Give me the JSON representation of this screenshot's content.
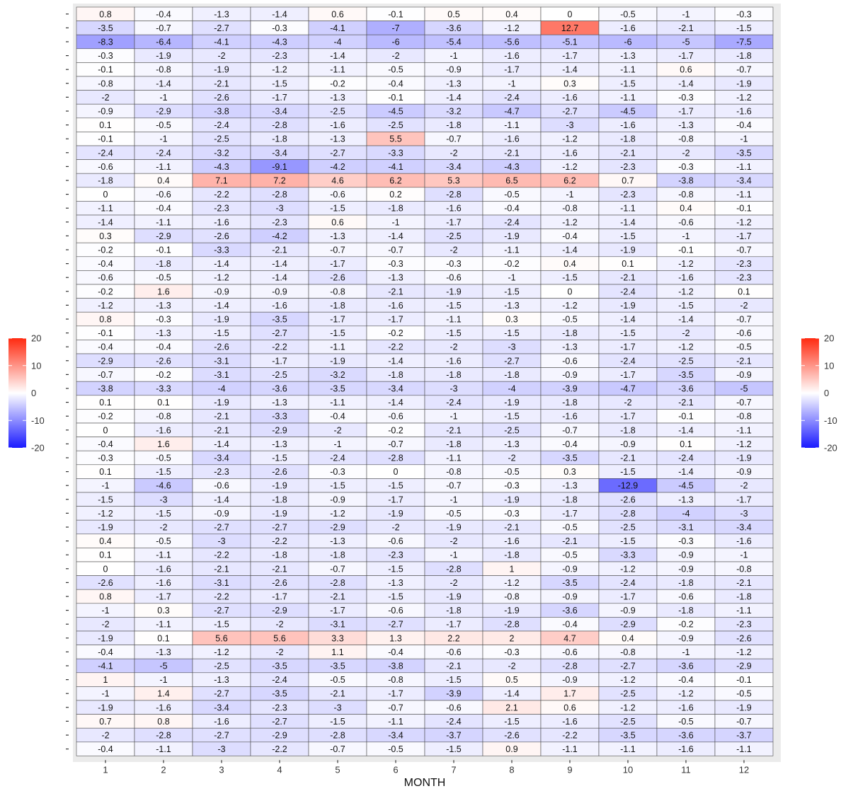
{
  "chart_data": {
    "type": "heatmap",
    "xlabel": "MONTH",
    "x": [
      1,
      2,
      3,
      4,
      5,
      6,
      7,
      8,
      9,
      10,
      11,
      12
    ],
    "color_scale": {
      "low": "#1a1aff",
      "mid": "#ffffff",
      "high": "#ff2a10",
      "limits": [
        -20,
        20
      ]
    },
    "legend": {
      "ticks": [
        20,
        10,
        0,
        -10,
        -20
      ],
      "placement": "left and right"
    },
    "grid": true,
    "values": [
      [
        0.8,
        -0.4,
        -1.3,
        -1.4,
        0.6,
        -0.1,
        0.5,
        0.4,
        0,
        -0.5,
        -1,
        -0.3
      ],
      [
        -3.5,
        -0.7,
        -2.7,
        -0.3,
        -4.1,
        -7,
        -3.6,
        -1.2,
        12.7,
        -1.6,
        -2.1,
        -1.5
      ],
      [
        -8.3,
        -6.4,
        -4.1,
        -4.3,
        -4,
        -6,
        -5.4,
        -5.6,
        -5.1,
        -6,
        -5,
        -7.5
      ],
      [
        -0.3,
        -1.9,
        -2,
        -2.3,
        -1.4,
        -2,
        -1,
        -1.6,
        -1.7,
        -1.3,
        -1.7,
        -1.8
      ],
      [
        -0.1,
        -0.8,
        -1.9,
        -1.2,
        -1.1,
        -0.5,
        -0.9,
        -1.7,
        -1.4,
        -1.1,
        0.6,
        -0.7
      ],
      [
        -0.8,
        -1.4,
        -2.1,
        -1.5,
        -0.2,
        -0.4,
        -1.3,
        -1,
        0.3,
        -1.5,
        -1.4,
        -1.9
      ],
      [
        -2,
        -1,
        -2.6,
        -1.7,
        -1.3,
        -0.1,
        -1.4,
        -2.4,
        -1.6,
        -1.1,
        -0.3,
        -1.2
      ],
      [
        -0.9,
        -2.9,
        -3.8,
        -3.4,
        -2.5,
        -4.5,
        -3.2,
        -4.7,
        -2.7,
        -4.5,
        -1.7,
        -1.6
      ],
      [
        0.1,
        -0.5,
        -2.4,
        -2.8,
        -1.6,
        -2.5,
        -1.8,
        -1.1,
        -3,
        -1.6,
        -1.3,
        -0.4
      ],
      [
        -0.1,
        -1,
        -2.5,
        -1.8,
        -1.3,
        5.5,
        -0.7,
        -1.6,
        -1.2,
        -1.8,
        -0.8,
        -1
      ],
      [
        -2.4,
        -2.4,
        -3.2,
        -3.4,
        -2.7,
        -3.3,
        -2,
        -2.1,
        -1.6,
        -2.1,
        -2,
        -3.5
      ],
      [
        -0.6,
        -1.1,
        -4.3,
        -9.1,
        -4.2,
        -4.1,
        -3.4,
        -4.3,
        -1.2,
        -2.3,
        -0.3,
        -1.1
      ],
      [
        -1.8,
        0.4,
        7.1,
        7.2,
        4.6,
        6.2,
        5.3,
        6.5,
        6.2,
        0.7,
        -3.8,
        -3.4
      ],
      [
        0,
        -0.6,
        -2.2,
        -2.8,
        -0.6,
        0.2,
        -2.8,
        -0.5,
        -1,
        -2.3,
        -0.8,
        -1.1
      ],
      [
        -1.1,
        -0.4,
        -2.3,
        -3,
        -1.5,
        -1.8,
        -1.6,
        -0.4,
        -0.8,
        -1.1,
        0.4,
        -0.1
      ],
      [
        -1.4,
        -1.1,
        -1.6,
        -2.3,
        0.6,
        -1,
        -1.7,
        -2.4,
        -1.2,
        -1.4,
        -0.6,
        -1.2
      ],
      [
        0.3,
        -2.9,
        -2.6,
        -4.2,
        -1.3,
        -1.4,
        -2.5,
        -1.9,
        -0.4,
        -1.5,
        -1,
        -1.7
      ],
      [
        -0.2,
        -0.1,
        -3.3,
        -2.1,
        -0.7,
        -0.7,
        -2,
        -1.1,
        -1.4,
        -1.9,
        -0.1,
        -0.7
      ],
      [
        -0.4,
        -1.8,
        -1.4,
        -1.4,
        -1.7,
        -0.3,
        -0.3,
        -0.2,
        0.4,
        0.1,
        -1.2,
        -2.3
      ],
      [
        -0.6,
        -0.5,
        -1.2,
        -1.4,
        -2.6,
        -1.3,
        -0.6,
        -1,
        -1.5,
        -2.1,
        -1.6,
        -2.3
      ],
      [
        -0.2,
        1.6,
        -0.9,
        -0.9,
        -0.8,
        -2.1,
        -1.9,
        -1.5,
        0,
        -2.4,
        -1.2,
        0.1
      ],
      [
        -1.2,
        -1.3,
        -1.4,
        -1.6,
        -1.8,
        -1.6,
        -1.5,
        -1.3,
        -1.2,
        -1.9,
        -1.5,
        -2
      ],
      [
        0.8,
        -0.3,
        -1.9,
        -3.5,
        -1.7,
        -1.7,
        -1.1,
        0.3,
        -0.5,
        -1.4,
        -1.4,
        -0.7
      ],
      [
        -0.1,
        -1.3,
        -1.5,
        -2.7,
        -1.5,
        -0.2,
        -1.5,
        -1.5,
        -1.8,
        -1.5,
        -2,
        -0.6
      ],
      [
        -0.4,
        -0.4,
        -2.6,
        -2.2,
        -1.1,
        -2.2,
        -2,
        -3,
        -1.3,
        -1.7,
        -1.2,
        -0.5
      ],
      [
        -2.9,
        -2.6,
        -3.1,
        -1.7,
        -1.9,
        -1.4,
        -1.6,
        -2.7,
        -0.6,
        -2.4,
        -2.5,
        -2.1
      ],
      [
        -0.7,
        -0.2,
        -3.1,
        -2.5,
        -3.2,
        -1.8,
        -1.8,
        -1.8,
        -0.9,
        -1.7,
        -3.5,
        -0.9
      ],
      [
        -3.8,
        -3.3,
        -4,
        -3.6,
        -3.5,
        -3.4,
        -3,
        -4,
        -3.9,
        -4.7,
        -3.6,
        -5
      ],
      [
        0.1,
        0.1,
        -1.9,
        -1.3,
        -1.1,
        -1.4,
        -2.4,
        -1.9,
        -1.8,
        -2,
        -2.1,
        -0.7
      ],
      [
        -0.2,
        -0.8,
        -2.1,
        -3.3,
        -0.4,
        -0.6,
        -1,
        -1.5,
        -1.6,
        -1.7,
        -0.1,
        -0.8
      ],
      [
        0,
        -1.6,
        -2.1,
        -2.9,
        -2,
        -0.2,
        -2.1,
        -2.5,
        -0.7,
        -1.8,
        -1.4,
        -1.1
      ],
      [
        -0.4,
        1.6,
        -1.4,
        -1.3,
        -1,
        -0.7,
        -1.8,
        -1.3,
        -0.4,
        -0.9,
        0.1,
        -1.2
      ],
      [
        -0.3,
        -0.5,
        -3.4,
        -1.5,
        -2.4,
        -2.8,
        -1.1,
        -2,
        -3.5,
        -2.1,
        -2.4,
        -1.9
      ],
      [
        0.1,
        -1.5,
        -2.3,
        -2.6,
        -0.3,
        0,
        -0.8,
        -0.5,
        0.3,
        -1.5,
        -1.4,
        -0.9
      ],
      [
        -1,
        -4.6,
        -0.6,
        -1.9,
        -1.5,
        -1.5,
        -0.7,
        -0.3,
        -1.3,
        -12.9,
        -4.5,
        -2
      ],
      [
        -1.5,
        -3,
        -1.4,
        -1.8,
        -0.9,
        -1.7,
        -1,
        -1.9,
        -1.8,
        -2.6,
        -1.3,
        -1.7
      ],
      [
        -1.2,
        -1.5,
        -0.9,
        -1.9,
        -1.2,
        -1.9,
        -0.5,
        -0.3,
        -1.7,
        -2.8,
        -4,
        -3
      ],
      [
        -1.9,
        -2,
        -2.7,
        -2.7,
        -2.9,
        -2,
        -1.9,
        -2.1,
        -0.5,
        -2.5,
        -3.1,
        -3.4
      ],
      [
        0.4,
        -0.5,
        -3,
        -2.2,
        -1.3,
        -0.6,
        -2,
        -1.6,
        -2.1,
        -1.5,
        -0.3,
        -1.6
      ],
      [
        0.1,
        -1.1,
        -2.2,
        -1.8,
        -1.8,
        -2.3,
        -1,
        -1.8,
        -0.5,
        -3.3,
        -0.9,
        -1
      ],
      [
        0,
        -1.6,
        -2.1,
        -2.1,
        -0.7,
        -1.5,
        -2.8,
        1,
        -0.9,
        -1.2,
        -0.9,
        -0.8
      ],
      [
        -2.6,
        -1.6,
        -3.1,
        -2.6,
        -2.8,
        -1.3,
        -2,
        -1.2,
        -3.5,
        -2.4,
        -1.8,
        -2.1
      ],
      [
        0.8,
        -1.7,
        -2.2,
        -1.7,
        -2.1,
        -1.5,
        -1.9,
        -0.8,
        -0.9,
        -1.7,
        -0.6,
        -1.8
      ],
      [
        -1,
        0.3,
        -2.7,
        -2.9,
        -1.7,
        -0.6,
        -1.8,
        -1.9,
        -3.6,
        -0.9,
        -1.8,
        -1.1
      ],
      [
        -2,
        -1.1,
        -1.5,
        -2,
        -3.1,
        -2.7,
        -1.7,
        -2.8,
        -0.4,
        -2.9,
        -0.2,
        -2.3
      ],
      [
        -1.9,
        0.1,
        5.6,
        5.6,
        3.3,
        1.3,
        2.2,
        2,
        4.7,
        0.4,
        -0.9,
        -2.6
      ],
      [
        -0.4,
        -1.3,
        -1.2,
        -2,
        1.1,
        -0.4,
        -0.6,
        -0.3,
        -0.6,
        -0.8,
        -1,
        -1.2
      ],
      [
        -4.1,
        -5,
        -2.5,
        -3.5,
        -3.5,
        -3.8,
        -2.1,
        -2,
        -2.8,
        -2.7,
        -3.6,
        -2.9
      ],
      [
        1,
        -1,
        -1.3,
        -2.4,
        -0.5,
        -0.8,
        -1.5,
        0.5,
        -0.9,
        -1.2,
        -0.4,
        -0.1
      ],
      [
        -1,
        1.4,
        -2.7,
        -3.5,
        -2.1,
        -1.7,
        -3.9,
        -1.4,
        1.7,
        -2.5,
        -1.2,
        -0.5
      ],
      [
        -1.9,
        -1.6,
        -3.4,
        -2.3,
        -3,
        -0.7,
        -0.6,
        2.1,
        0.6,
        -1.2,
        -1.6,
        -1.9
      ],
      [
        0.7,
        0.8,
        -1.6,
        -2.7,
        -1.5,
        -1.1,
        -2.4,
        -1.5,
        -1.6,
        -2.5,
        -0.5,
        -0.7
      ],
      [
        -2,
        -2.8,
        -2.7,
        -2.9,
        -2.8,
        -3.4,
        -3.7,
        -2.6,
        -2.2,
        -3.5,
        -3.6,
        -3.7
      ],
      [
        -0.4,
        -1.1,
        -3,
        -2.2,
        -0.7,
        -0.5,
        -1.5,
        0.9,
        -1.1,
        -1.1,
        -1.6,
        -1.1
      ]
    ]
  }
}
